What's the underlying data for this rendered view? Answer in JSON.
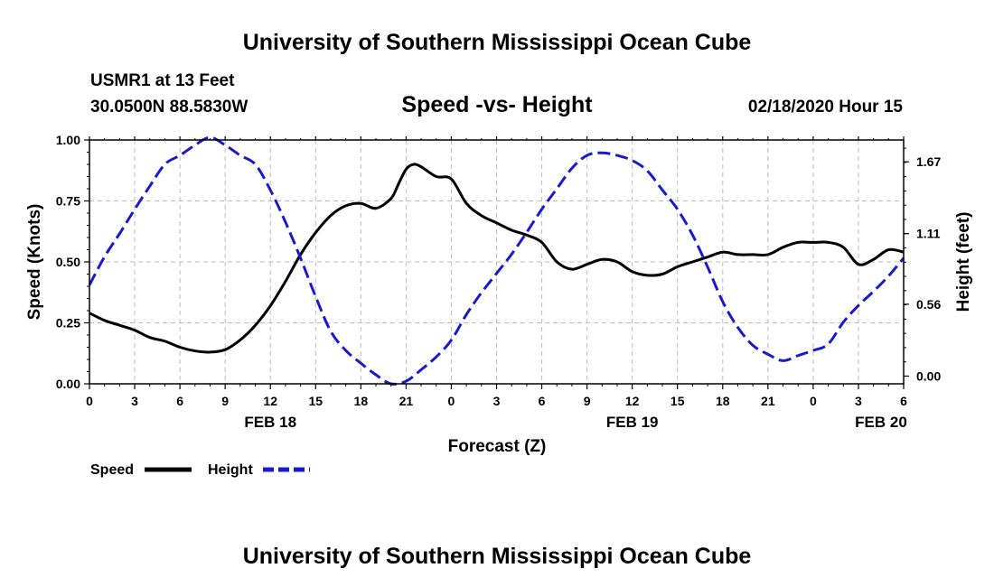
{
  "page": {
    "title_top": "University of Southern Mississippi Ocean Cube",
    "title_bottom": "University of Southern Mississippi Ocean Cube",
    "station": "USMR1 at 13 Feet",
    "location": "30.0500N 88.5830W",
    "chart_title": "Speed -vs- Height",
    "datetime": "02/18/2020 Hour 15"
  },
  "colors": {
    "speed": "#000000",
    "height": "#1a1acc",
    "grid": "#bdbdbd"
  },
  "chart_data": {
    "type": "line",
    "title": "Speed -vs- Height",
    "xlabel": "Forecast (Z)",
    "ylabel": "Speed (Knots)",
    "y2label": "Height (feet)",
    "xlim": [
      0,
      54
    ],
    "ylim": [
      0,
      1
    ],
    "y2lim": [
      -0.06,
      1.84
    ],
    "x_ticks": [
      0,
      3,
      6,
      9,
      12,
      15,
      18,
      21,
      24,
      27,
      30,
      33,
      36,
      39,
      42,
      45,
      48,
      51,
      54
    ],
    "x_tick_labels": [
      "0",
      "3",
      "6",
      "9",
      "12",
      "15",
      "18",
      "21",
      "0",
      "3",
      "6",
      "9",
      "12",
      "15",
      "18",
      "21",
      "0",
      "3",
      "6"
    ],
    "date_labels": [
      {
        "x": 12,
        "label": "FEB 18"
      },
      {
        "x": 36,
        "label": "FEB 19"
      },
      {
        "x": 52.5,
        "label": "FEB 20"
      }
    ],
    "y_ticks": [
      0.0,
      0.25,
      0.5,
      0.75,
      1.0
    ],
    "y_tick_labels": [
      "0.00",
      "0.25",
      "0.50",
      "0.75",
      "1.00"
    ],
    "y2_ticks": [
      0.0,
      0.56,
      1.11,
      1.67
    ],
    "y2_tick_labels": [
      "0.00",
      "0.56",
      "1.11",
      "1.67"
    ],
    "grid": true,
    "legend_position": "bottom-left",
    "series": [
      {
        "name": "Speed",
        "axis": "left",
        "style": "solid",
        "x": [
          0,
          1,
          2,
          3,
          4,
          5,
          6,
          7,
          8,
          9,
          10,
          11,
          12,
          13,
          14,
          15,
          16,
          17,
          18,
          19,
          20,
          20.5,
          21,
          21.5,
          22,
          23,
          24,
          25,
          26,
          27,
          28,
          29,
          30,
          31,
          32,
          33,
          34,
          35,
          36,
          37,
          38,
          39,
          40,
          41,
          42,
          43,
          44,
          45,
          46,
          47,
          48,
          49,
          50,
          51,
          52,
          53,
          54
        ],
        "y": [
          0.29,
          0.26,
          0.24,
          0.22,
          0.19,
          0.175,
          0.15,
          0.135,
          0.13,
          0.14,
          0.18,
          0.24,
          0.32,
          0.42,
          0.53,
          0.62,
          0.69,
          0.73,
          0.74,
          0.72,
          0.76,
          0.82,
          0.88,
          0.9,
          0.89,
          0.85,
          0.84,
          0.74,
          0.69,
          0.66,
          0.63,
          0.61,
          0.58,
          0.5,
          0.47,
          0.49,
          0.51,
          0.5,
          0.46,
          0.445,
          0.45,
          0.48,
          0.5,
          0.52,
          0.54,
          0.53,
          0.53,
          0.53,
          0.56,
          0.58,
          0.58,
          0.58,
          0.56,
          0.49,
          0.51,
          0.55,
          0.54
        ]
      },
      {
        "name": "Height",
        "axis": "right",
        "style": "dashed",
        "x": [
          0,
          1,
          2,
          3,
          4,
          5,
          6,
          7,
          8,
          9,
          10,
          11,
          12,
          13,
          14,
          15,
          16,
          17,
          18,
          19,
          20,
          21,
          22,
          23,
          24,
          25,
          26,
          27,
          28,
          29,
          30,
          31,
          32,
          33,
          34,
          35,
          36,
          37,
          38,
          39,
          40,
          41,
          42,
          43,
          44,
          45,
          46,
          47,
          48,
          49,
          50,
          51,
          52,
          53,
          54
        ],
        "y": [
          0.71,
          0.93,
          1.11,
          1.3,
          1.48,
          1.65,
          1.72,
          1.8,
          1.86,
          1.8,
          1.72,
          1.65,
          1.45,
          1.2,
          0.92,
          0.62,
          0.35,
          0.2,
          0.1,
          0.01,
          -0.06,
          -0.04,
          0.05,
          0.15,
          0.28,
          0.48,
          0.65,
          0.8,
          0.95,
          1.12,
          1.3,
          1.46,
          1.62,
          1.72,
          1.74,
          1.72,
          1.68,
          1.6,
          1.45,
          1.3,
          1.1,
          0.85,
          0.58,
          0.38,
          0.24,
          0.17,
          0.12,
          0.16,
          0.2,
          0.25,
          0.42,
          0.55,
          0.66,
          0.78,
          0.92
        ]
      }
    ],
    "legend": [
      {
        "name": "Speed",
        "style": "solid"
      },
      {
        "name": "Height",
        "style": "dashed"
      }
    ]
  }
}
